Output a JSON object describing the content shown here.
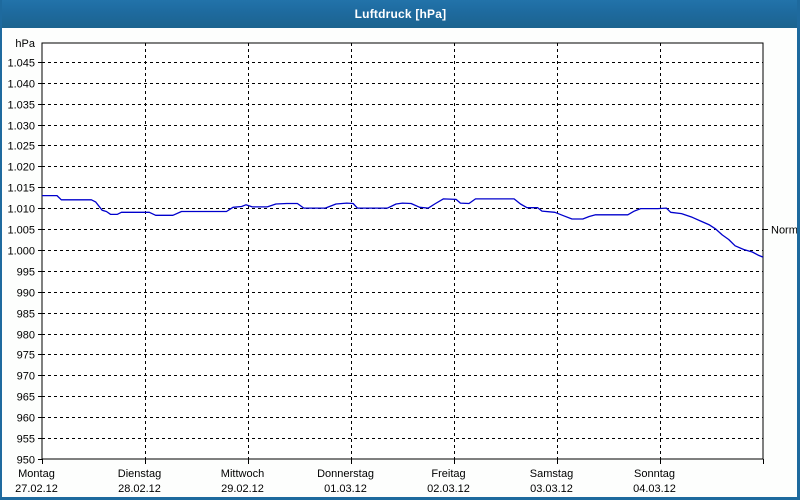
{
  "window": {
    "title": "Luftdruck [hPa]",
    "colors": {
      "titlebar": "#1e6a9e",
      "border": "#1e6a9e",
      "title_text": "#ffffff"
    }
  },
  "chart_data": {
    "type": "line",
    "title": "Luftdruck [hPa]",
    "ylabel": "hPa",
    "xlabel": "",
    "grid": "dashed",
    "legend": "none",
    "line_color": "#0000cc",
    "axis_color": "#000000",
    "plot_background": "#ffffff",
    "ylim": [
      950,
      1049.5
    ],
    "y_axis": {
      "unit": "hPa",
      "tick_step": 5,
      "ticks": [
        {
          "value": 1045,
          "label": "1.045"
        },
        {
          "value": 1040,
          "label": "1.040"
        },
        {
          "value": 1035,
          "label": "1.035"
        },
        {
          "value": 1030,
          "label": "1.030"
        },
        {
          "value": 1025,
          "label": "1.025"
        },
        {
          "value": 1020,
          "label": "1.020"
        },
        {
          "value": 1015,
          "label": "1.015"
        },
        {
          "value": 1010,
          "label": "1.010"
        },
        {
          "value": 1005,
          "label": "1.005"
        },
        {
          "value": 1000,
          "label": "1.000"
        },
        {
          "value": 995,
          "label": "995"
        },
        {
          "value": 990,
          "label": "990"
        },
        {
          "value": 985,
          "label": "985"
        },
        {
          "value": 980,
          "label": "980"
        },
        {
          "value": 975,
          "label": "975"
        },
        {
          "value": 970,
          "label": "970"
        },
        {
          "value": 965,
          "label": "965"
        },
        {
          "value": 960,
          "label": "960"
        },
        {
          "value": 955,
          "label": "955"
        },
        {
          "value": 950,
          "label": "950"
        }
      ]
    },
    "x_axis": {
      "hours_per_day": 24,
      "days": [
        {
          "day": "Montag",
          "date": "27.02.12"
        },
        {
          "day": "Dienstag",
          "date": "28.02.12"
        },
        {
          "day": "Mittwoch",
          "date": "29.02.12"
        },
        {
          "day": "Donnerstag",
          "date": "01.03.12"
        },
        {
          "day": "Freitag",
          "date": "02.03.12"
        },
        {
          "day": "Samstag",
          "date": "03.03.12"
        },
        {
          "day": "Sonntag",
          "date": "04.03.12"
        }
      ]
    },
    "normal_marker": {
      "label": "Normal",
      "value": 1005
    },
    "series": [
      {
        "name": "Luftdruck",
        "unit": "hPa",
        "points_hour_value": [
          [
            0,
            1013
          ],
          [
            3.5,
            1013
          ],
          [
            4.5,
            1012
          ],
          [
            11.5,
            1012
          ],
          [
            12.5,
            1011.5
          ],
          [
            14,
            1009.5
          ],
          [
            15,
            1009.2
          ],
          [
            16,
            1008.5
          ],
          [
            17.5,
            1008.5
          ],
          [
            18.5,
            1009
          ],
          [
            25,
            1009
          ],
          [
            26.5,
            1008.3
          ],
          [
            30.5,
            1008.3
          ],
          [
            32.5,
            1009.2
          ],
          [
            43,
            1009.2
          ],
          [
            44.5,
            1010.2
          ],
          [
            46.5,
            1010.4
          ],
          [
            47.5,
            1010.8
          ],
          [
            49,
            1010.3
          ],
          [
            52.5,
            1010.3
          ],
          [
            54.5,
            1011
          ],
          [
            57,
            1011.1
          ],
          [
            59.5,
            1011.1
          ],
          [
            61,
            1010
          ],
          [
            66,
            1010
          ],
          [
            68.5,
            1011
          ],
          [
            71,
            1011.2
          ],
          [
            72.5,
            1011.1
          ],
          [
            73.5,
            1010
          ],
          [
            80.5,
            1010
          ],
          [
            82.5,
            1011
          ],
          [
            84,
            1011.2
          ],
          [
            86,
            1011.1
          ],
          [
            88,
            1010.2
          ],
          [
            90,
            1010
          ],
          [
            91.5,
            1011
          ],
          [
            93.5,
            1012.2
          ],
          [
            96.5,
            1012.1
          ],
          [
            97.5,
            1011.2
          ],
          [
            99.5,
            1011.1
          ],
          [
            101,
            1012.2
          ],
          [
            110,
            1012.2
          ],
          [
            111.5,
            1011
          ],
          [
            113,
            1010.1
          ],
          [
            115.5,
            1010.1
          ],
          [
            116.5,
            1009.3
          ],
          [
            119.5,
            1009
          ],
          [
            121.5,
            1008.2
          ],
          [
            123.5,
            1007.4
          ],
          [
            126,
            1007.4
          ],
          [
            127.5,
            1008
          ],
          [
            129,
            1008.4
          ],
          [
            136.5,
            1008.4
          ],
          [
            138,
            1009.3
          ],
          [
            139.5,
            1009.9
          ],
          [
            143.5,
            1009.9
          ],
          [
            145.5,
            1010
          ],
          [
            146.5,
            1009
          ],
          [
            149,
            1008.7
          ],
          [
            151.5,
            1007.8
          ],
          [
            153.5,
            1006.9
          ],
          [
            155.5,
            1006
          ],
          [
            157,
            1005
          ],
          [
            158.5,
            1003.6
          ],
          [
            160,
            1002.5
          ],
          [
            161.5,
            1001
          ],
          [
            163.5,
            1000.1
          ],
          [
            165.5,
            999.5
          ],
          [
            167,
            998.7
          ],
          [
            168,
            998.3
          ]
        ]
      }
    ]
  }
}
